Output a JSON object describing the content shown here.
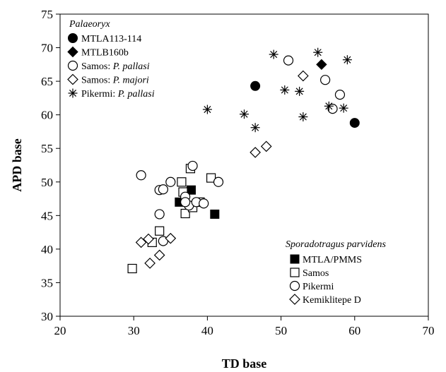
{
  "chart_data": {
    "type": "scatter",
    "title": "",
    "xlabel": "TD base",
    "ylabel": "APD base",
    "xlim": [
      20,
      70
    ],
    "ylim": [
      30,
      75
    ],
    "xticks": [
      20,
      30,
      40,
      50,
      60,
      70
    ],
    "yticks": [
      30,
      35,
      40,
      45,
      50,
      55,
      60,
      65,
      70,
      75
    ],
    "grid": false,
    "legends": [
      {
        "placement": "top-left",
        "title_parts": [
          {
            "text": "Palaeoryx",
            "italic": true
          }
        ],
        "entries": [
          {
            "marker": "filled-circle",
            "parts": [
              {
                "text": "MTLA113-114",
                "italic": false
              }
            ]
          },
          {
            "marker": "filled-diamond",
            "parts": [
              {
                "text": "MTLB160b",
                "italic": false
              }
            ]
          },
          {
            "marker": "open-circle",
            "parts": [
              {
                "text": "Samos: ",
                "italic": false
              },
              {
                "text": "P. pallasi",
                "italic": true
              }
            ]
          },
          {
            "marker": "open-diamond",
            "parts": [
              {
                "text": "Samos: ",
                "italic": false
              },
              {
                "text": "P. majori",
                "italic": true
              }
            ]
          },
          {
            "marker": "asterisk",
            "parts": [
              {
                "text": "Pikermi: ",
                "italic": false
              },
              {
                "text": "P. pallasi",
                "italic": true
              }
            ]
          }
        ]
      },
      {
        "placement": "bottom-right",
        "title_parts": [
          {
            "text": "Sporadotragus parvidens",
            "italic": true
          }
        ],
        "entries": [
          {
            "marker": "filled-square",
            "parts": [
              {
                "text": "MTLA/PMMS",
                "italic": false
              }
            ]
          },
          {
            "marker": "open-square",
            "parts": [
              {
                "text": "Samos",
                "italic": false
              }
            ]
          },
          {
            "marker": "open-circle",
            "parts": [
              {
                "text": "Pikermi",
                "italic": false
              }
            ]
          },
          {
            "marker": "open-diamond",
            "parts": [
              {
                "text": "Kemiklitepe D",
                "italic": false
              }
            ]
          }
        ]
      }
    ],
    "series": [
      {
        "name": "MTLA113-114",
        "marker": "filled-circle",
        "points": [
          [
            46.5,
            64.3
          ],
          [
            60,
            58.8
          ]
        ]
      },
      {
        "name": "MTLB160b",
        "marker": "filled-diamond",
        "points": [
          [
            55.5,
            67.5
          ]
        ]
      },
      {
        "name": "Samos: P. pallasi",
        "marker": "open-circle",
        "points": [
          [
            51,
            68.1
          ],
          [
            56,
            65.2
          ],
          [
            58,
            63
          ],
          [
            57,
            60.9
          ]
        ]
      },
      {
        "name": "Samos: P. majori",
        "marker": "open-diamond",
        "points": [
          [
            53,
            65.8
          ],
          [
            46.5,
            54.4
          ],
          [
            48,
            55.3
          ]
        ]
      },
      {
        "name": "Pikermi: P. pallasi",
        "marker": "asterisk",
        "points": [
          [
            49,
            69
          ],
          [
            55,
            69.3
          ],
          [
            59,
            68.2
          ],
          [
            40,
            60.8
          ],
          [
            45,
            60.1
          ],
          [
            46.5,
            58.1
          ],
          [
            50.5,
            63.7
          ],
          [
            52.5,
            63.5
          ],
          [
            53,
            59.7
          ],
          [
            56.5,
            61.3
          ],
          [
            58.5,
            61
          ]
        ]
      },
      {
        "name": "MTLA/PMMS",
        "marker": "filled-square",
        "points": [
          [
            36.2,
            47
          ],
          [
            37.8,
            48.8
          ],
          [
            41,
            45.2
          ]
        ]
      },
      {
        "name": "Samos",
        "marker": "open-square",
        "points": [
          [
            29.8,
            37.1
          ],
          [
            32.5,
            41
          ],
          [
            33.5,
            42.7
          ],
          [
            37.7,
            52
          ],
          [
            36.5,
            50
          ],
          [
            40.5,
            50.6
          ],
          [
            37,
            45.3
          ],
          [
            38,
            46.2
          ],
          [
            39,
            47
          ],
          [
            36.7,
            48.5
          ]
        ]
      },
      {
        "name": "Pikermi",
        "marker": "open-circle",
        "points": [
          [
            31,
            51
          ],
          [
            33.5,
            48.8
          ],
          [
            34,
            48.9
          ],
          [
            35,
            50
          ],
          [
            38,
            52.4
          ],
          [
            41.5,
            50
          ],
          [
            33.5,
            45.2
          ],
          [
            37,
            47.8
          ],
          [
            37.5,
            46.5
          ],
          [
            38.5,
            47
          ],
          [
            39.5,
            46.8
          ],
          [
            37,
            47
          ],
          [
            34,
            41.2
          ]
        ]
      },
      {
        "name": "Kemiklitepe D",
        "marker": "open-diamond",
        "points": [
          [
            31,
            41
          ],
          [
            32,
            41.5
          ],
          [
            32.2,
            37.9
          ],
          [
            33.5,
            39.1
          ],
          [
            35,
            41.6
          ]
        ]
      }
    ]
  }
}
